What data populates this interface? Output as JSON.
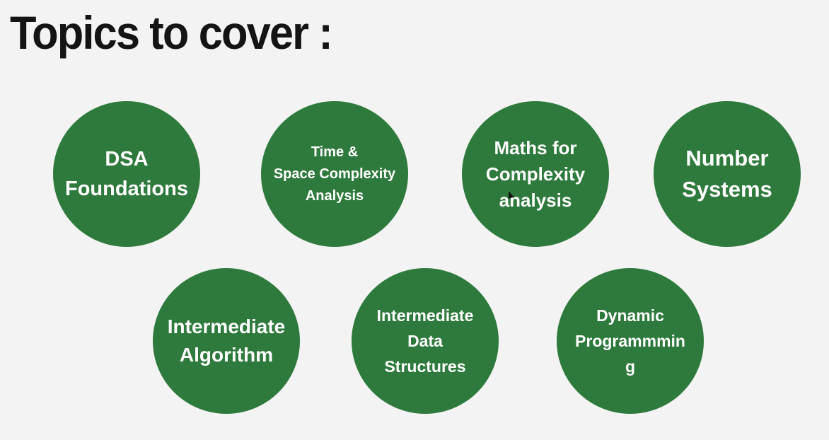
{
  "slide": {
    "title": "Topics to cover :",
    "accent_color": "#2e7a3c",
    "topics": [
      {
        "lines": [
          "DSA",
          "Foundations"
        ]
      },
      {
        "lines": [
          "Time &",
          "Space Complexity",
          "Analysis"
        ]
      },
      {
        "lines": [
          "Maths for",
          "Complexity",
          "analysis"
        ]
      },
      {
        "lines": [
          "Number",
          "Systems"
        ]
      },
      {
        "lines": [
          "Intermediate",
          "Algorithm"
        ]
      },
      {
        "lines": [
          "Intermediate",
          "Data",
          "Structures"
        ]
      },
      {
        "lines": [
          "Dynamic",
          "Programmmin",
          "g"
        ]
      }
    ]
  }
}
